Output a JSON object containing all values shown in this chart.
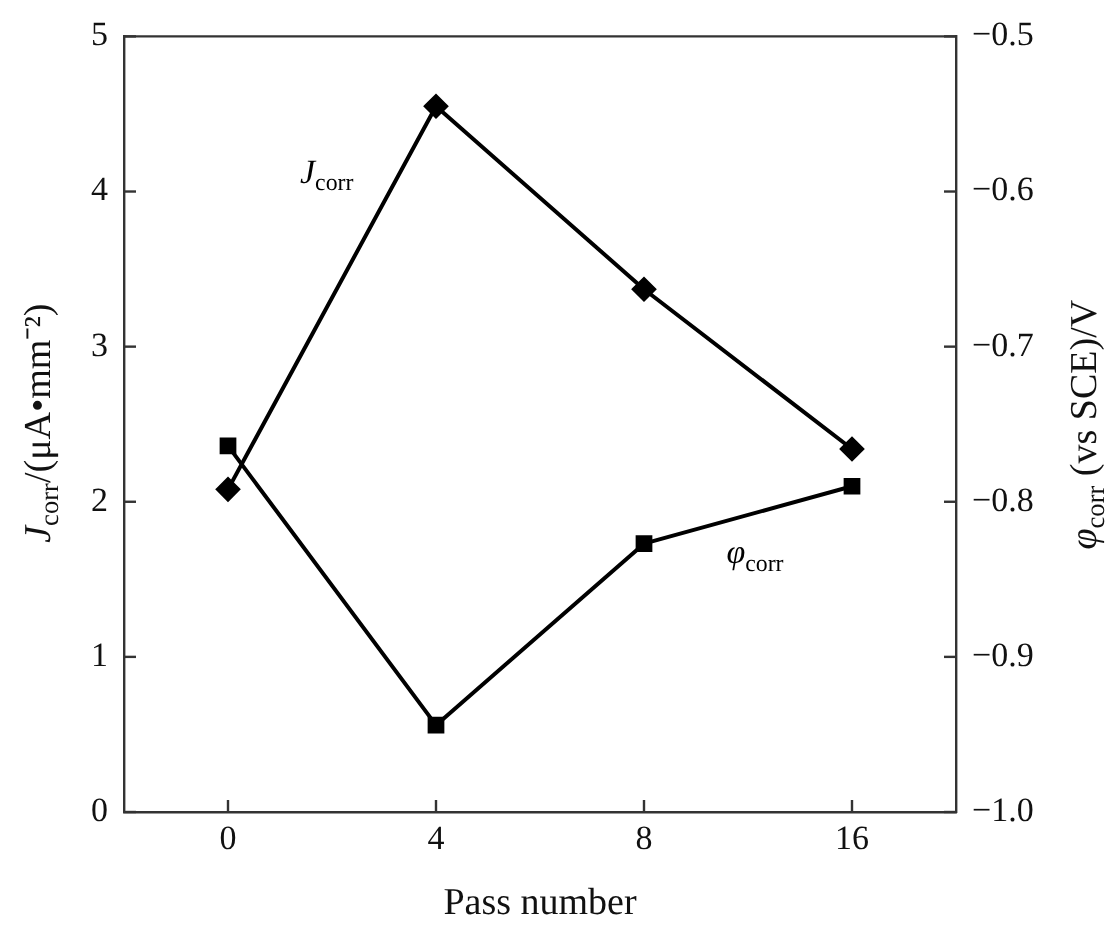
{
  "chart_data": {
    "type": "line",
    "xlabel": "Pass number",
    "ylabel": "J$_{corr}$/(μA•mm⁻²)",
    "y2label": "φ$_{corr}$ (vs SCE)/V",
    "categories": [
      "0",
      "4",
      "8",
      "16"
    ],
    "ylim": [
      0,
      5
    ],
    "yticks": [
      0,
      1,
      2,
      3,
      4,
      5
    ],
    "y2lim": [
      -1.0,
      -0.5
    ],
    "y2ticks": [
      {
        "value": -1.0,
        "label": "−1.0"
      },
      {
        "value": -0.9,
        "label": "−0.9"
      },
      {
        "value": -0.8,
        "label": "−0.8"
      },
      {
        "value": -0.7,
        "label": "−0.7"
      },
      {
        "value": -0.6,
        "label": "−0.6"
      },
      {
        "value": -0.5,
        "label": "−0.5"
      }
    ],
    "grid": false,
    "legend": false,
    "line_style": "solid",
    "series": [
      {
        "name": "J$_{corr}$",
        "color": "#000000",
        "marker": "diamond",
        "values": [
          2.08,
          4.55,
          3.37,
          2.34
        ]
      },
      {
        "name": "φ$_{corr}$",
        "color": "#000000",
        "marker": "square",
        "axis": "y2",
        "values": [
          -0.764,
          -0.944,
          -0.827,
          -0.79
        ]
      }
    ]
  }
}
